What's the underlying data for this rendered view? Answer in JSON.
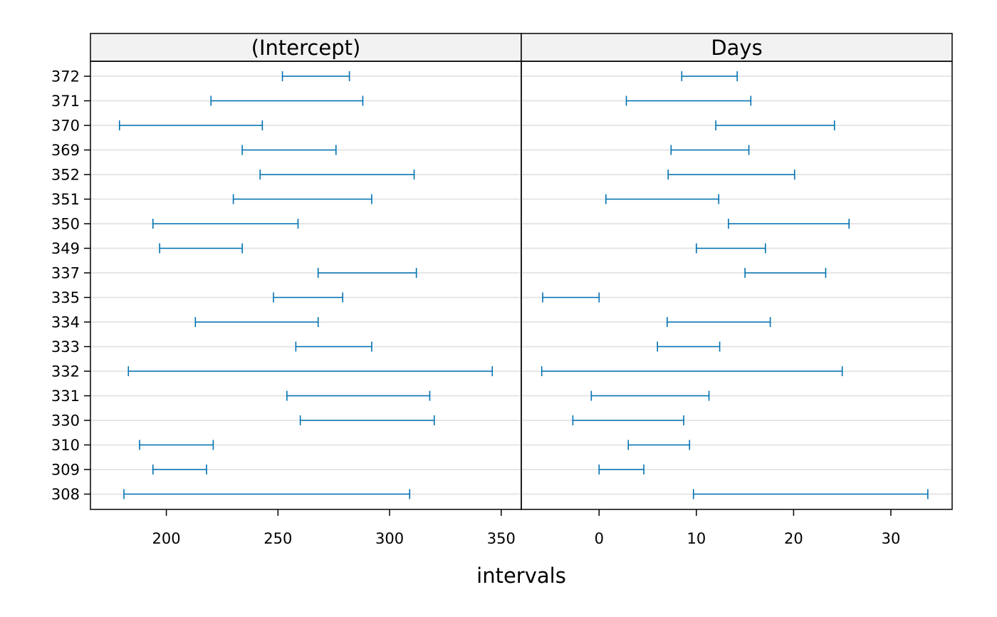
{
  "chart_data": {
    "type": "interval",
    "xlabel": "intervals",
    "series_color": "#0072B2",
    "grid": true,
    "categories": [
      "372",
      "371",
      "370",
      "369",
      "352",
      "351",
      "350",
      "349",
      "337",
      "335",
      "334",
      "333",
      "332",
      "331",
      "330",
      "310",
      "309",
      "308"
    ],
    "panels": [
      {
        "title": "(Intercept)",
        "xlim": [
          166,
          359
        ],
        "xticks": [
          200,
          250,
          300,
          350
        ],
        "intervals": [
          {
            "group": "372",
            "low": 252,
            "high": 282
          },
          {
            "group": "371",
            "low": 220,
            "high": 288
          },
          {
            "group": "370",
            "low": 179,
            "high": 243
          },
          {
            "group": "369",
            "low": 234,
            "high": 276
          },
          {
            "group": "352",
            "low": 242,
            "high": 311
          },
          {
            "group": "351",
            "low": 230,
            "high": 292
          },
          {
            "group": "350",
            "low": 194,
            "high": 259
          },
          {
            "group": "349",
            "low": 197,
            "high": 234
          },
          {
            "group": "337",
            "low": 268,
            "high": 312
          },
          {
            "group": "335",
            "low": 248,
            "high": 279
          },
          {
            "group": "334",
            "low": 213,
            "high": 268
          },
          {
            "group": "333",
            "low": 258,
            "high": 292
          },
          {
            "group": "332",
            "low": 183,
            "high": 346
          },
          {
            "group": "331",
            "low": 254,
            "high": 318
          },
          {
            "group": "330",
            "low": 260,
            "high": 320
          },
          {
            "group": "310",
            "low": 188,
            "high": 221
          },
          {
            "group": "309",
            "low": 194,
            "high": 218
          },
          {
            "group": "308",
            "low": 181,
            "high": 309
          }
        ]
      },
      {
        "title": "Days",
        "xlim": [
          -8,
          36.3
        ],
        "xticks": [
          0,
          10,
          20,
          30
        ],
        "intervals": [
          {
            "group": "372",
            "low": 8.5,
            "high": 14.2
          },
          {
            "group": "371",
            "low": 2.8,
            "high": 15.6
          },
          {
            "group": "370",
            "low": 12.0,
            "high": 24.2
          },
          {
            "group": "369",
            "low": 7.4,
            "high": 15.4
          },
          {
            "group": "352",
            "low": 7.1,
            "high": 20.1
          },
          {
            "group": "351",
            "low": 0.7,
            "high": 12.3
          },
          {
            "group": "350",
            "low": 13.3,
            "high": 25.7
          },
          {
            "group": "349",
            "low": 10.0,
            "high": 17.1
          },
          {
            "group": "337",
            "low": 15.0,
            "high": 23.3
          },
          {
            "group": "335",
            "low": -5.8,
            "high": 0.0
          },
          {
            "group": "334",
            "low": 7.0,
            "high": 17.6
          },
          {
            "group": "333",
            "low": 6.0,
            "high": 12.4
          },
          {
            "group": "332",
            "low": -5.9,
            "high": 25.0
          },
          {
            "group": "331",
            "low": -0.8,
            "high": 11.3
          },
          {
            "group": "330",
            "low": -2.7,
            "high": 8.7
          },
          {
            "group": "310",
            "low": 3.0,
            "high": 9.3
          },
          {
            "group": "309",
            "low": 0.0,
            "high": 4.6
          },
          {
            "group": "308",
            "low": 9.7,
            "high": 33.8
          }
        ]
      }
    ]
  }
}
